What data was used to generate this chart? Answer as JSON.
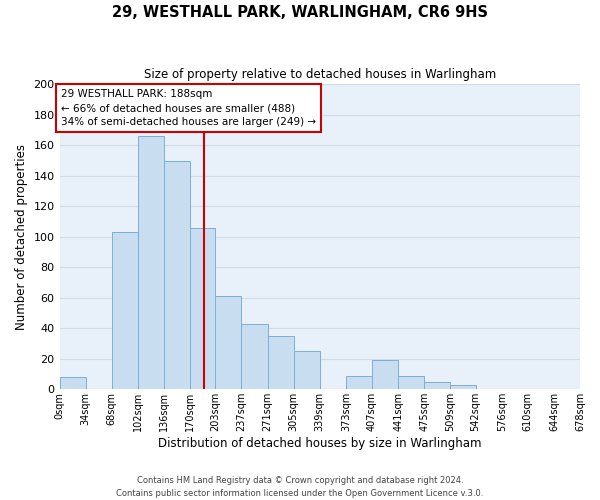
{
  "title": "29, WESTHALL PARK, WARLINGHAM, CR6 9HS",
  "subtitle": "Size of property relative to detached houses in Warlingham",
  "xlabel": "Distribution of detached houses by size in Warlingham",
  "ylabel": "Number of detached properties",
  "bar_color": "#c8ddf0",
  "bar_edge_color": "#7ab0d4",
  "bin_edges": [
    0,
    34,
    68,
    102,
    136,
    170,
    203,
    237,
    271,
    305,
    339,
    373,
    407,
    441,
    475,
    509,
    542,
    576,
    610,
    644,
    678
  ],
  "bar_heights": [
    8,
    0,
    103,
    166,
    150,
    106,
    61,
    43,
    35,
    25,
    0,
    9,
    19,
    9,
    5,
    3,
    0,
    0,
    0,
    0
  ],
  "tick_labels": [
    "0sqm",
    "34sqm",
    "68sqm",
    "102sqm",
    "136sqm",
    "170sqm",
    "203sqm",
    "237sqm",
    "271sqm",
    "305sqm",
    "339sqm",
    "373sqm",
    "407sqm",
    "441sqm",
    "475sqm",
    "509sqm",
    "542sqm",
    "576sqm",
    "610sqm",
    "644sqm",
    "678sqm"
  ],
  "vline_x": 188,
  "vline_color": "#cc0000",
  "ylim": [
    0,
    200
  ],
  "yticks": [
    0,
    20,
    40,
    60,
    80,
    100,
    120,
    140,
    160,
    180,
    200
  ],
  "annotation_title": "29 WESTHALL PARK: 188sqm",
  "annotation_line1": "← 66% of detached houses are smaller (488)",
  "annotation_line2": "34% of semi-detached houses are larger (249) →",
  "annotation_box_color": "#ffffff",
  "annotation_box_edge": "#cc0000",
  "footer1": "Contains HM Land Registry data © Crown copyright and database right 2024.",
  "footer2": "Contains public sector information licensed under the Open Government Licence v.3.0.",
  "grid_color": "#d0dce8",
  "background_color": "#e8f1fa"
}
